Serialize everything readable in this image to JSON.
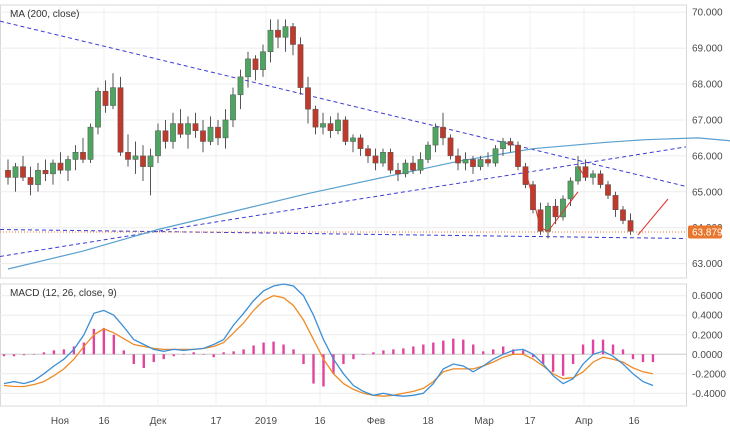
{
  "chart_data": [
    {
      "type": "candlestick",
      "indicator_label": "MA (200, close)",
      "x_tick_labels": [
        "Ноя",
        "16",
        "Дек",
        "17",
        "2019",
        "16",
        "Фев",
        "18",
        "Мар",
        "17",
        "Апр",
        "16"
      ],
      "y_tick_labels": [
        "70.000",
        "69.000",
        "68.000",
        "67.000",
        "66.000",
        "65.000",
        "64.000",
        "63.000"
      ],
      "ylim": [
        62.6,
        70.2
      ],
      "last_price": "63.879",
      "grid": true,
      "colors": {
        "up": "#4ea562",
        "down": "#c0392b",
        "ma": "#5aa0cf",
        "trend": "#3b3bd4",
        "price_line": "#e8762d"
      },
      "ohlc": [
        [
          65.6,
          65.9,
          65.2,
          65.4
        ],
        [
          65.4,
          65.8,
          65.0,
          65.7
        ],
        [
          65.7,
          66.0,
          65.3,
          65.4
        ],
        [
          65.4,
          65.7,
          64.9,
          65.2
        ],
        [
          65.2,
          65.8,
          65.0,
          65.6
        ],
        [
          65.6,
          65.9,
          65.3,
          65.5
        ],
        [
          65.5,
          65.9,
          65.2,
          65.8
        ],
        [
          65.8,
          66.1,
          65.5,
          65.6
        ],
        [
          65.6,
          66.0,
          65.3,
          65.9
        ],
        [
          65.9,
          66.3,
          65.6,
          66.1
        ],
        [
          66.1,
          66.5,
          65.8,
          65.9
        ],
        [
          65.9,
          66.9,
          65.8,
          66.8
        ],
        [
          66.8,
          67.9,
          66.6,
          67.8
        ],
        [
          67.8,
          68.1,
          67.2,
          67.4
        ],
        [
          67.4,
          68.3,
          67.3,
          67.9
        ],
        [
          67.9,
          68.2,
          66.0,
          66.1
        ],
        [
          66.1,
          66.6,
          65.7,
          65.9
        ],
        [
          65.9,
          66.4,
          65.5,
          66.0
        ],
        [
          66.0,
          66.3,
          65.3,
          65.7
        ],
        [
          65.7,
          66.2,
          64.9,
          66.0
        ],
        [
          66.0,
          66.9,
          65.8,
          66.7
        ],
        [
          66.7,
          67.0,
          66.2,
          66.4
        ],
        [
          66.4,
          67.2,
          66.2,
          66.9
        ],
        [
          66.9,
          67.3,
          66.5,
          66.6
        ],
        [
          66.6,
          67.1,
          66.2,
          66.9
        ],
        [
          66.9,
          67.2,
          66.5,
          66.7
        ],
        [
          66.7,
          67.0,
          66.1,
          66.4
        ],
        [
          66.4,
          67.1,
          66.3,
          66.8
        ],
        [
          66.8,
          67.0,
          66.3,
          66.5
        ],
        [
          66.5,
          67.3,
          66.2,
          67.0
        ],
        [
          67.0,
          67.9,
          66.8,
          67.7
        ],
        [
          67.7,
          68.4,
          67.3,
          68.2
        ],
        [
          68.2,
          68.9,
          67.9,
          68.7
        ],
        [
          68.7,
          68.8,
          68.1,
          68.4
        ],
        [
          68.4,
          69.1,
          68.2,
          68.9
        ],
        [
          68.9,
          69.8,
          68.6,
          69.5
        ],
        [
          69.5,
          69.8,
          69.0,
          69.3
        ],
        [
          69.3,
          69.8,
          68.9,
          69.6
        ],
        [
          69.6,
          69.7,
          68.8,
          69.1
        ],
        [
          69.1,
          69.3,
          67.7,
          67.9
        ],
        [
          67.9,
          68.2,
          66.9,
          67.3
        ],
        [
          67.3,
          67.4,
          66.6,
          66.8
        ],
        [
          66.8,
          67.2,
          66.6,
          66.9
        ],
        [
          66.9,
          67.1,
          66.5,
          66.7
        ],
        [
          66.7,
          67.2,
          66.6,
          67.0
        ],
        [
          67.0,
          67.1,
          66.3,
          66.4
        ],
        [
          66.4,
          66.6,
          66.1,
          66.5
        ],
        [
          66.5,
          66.6,
          66.0,
          66.2
        ],
        [
          66.2,
          66.3,
          65.8,
          66.0
        ],
        [
          66.0,
          66.2,
          65.6,
          65.8
        ],
        [
          65.8,
          66.2,
          65.7,
          66.1
        ],
        [
          66.1,
          66.2,
          65.5,
          65.6
        ],
        [
          65.6,
          65.8,
          65.3,
          65.5
        ],
        [
          65.5,
          65.9,
          65.4,
          65.8
        ],
        [
          65.8,
          66.0,
          65.5,
          65.6
        ],
        [
          65.6,
          66.1,
          65.5,
          65.9
        ],
        [
          65.9,
          66.4,
          65.8,
          66.3
        ],
        [
          66.3,
          66.9,
          66.1,
          66.8
        ],
        [
          66.8,
          67.2,
          66.3,
          66.5
        ],
        [
          66.5,
          66.6,
          65.9,
          66.0
        ],
        [
          66.0,
          66.2,
          65.6,
          65.8
        ],
        [
          65.8,
          66.1,
          65.6,
          65.9
        ],
        [
          65.9,
          66.0,
          65.5,
          65.7
        ],
        [
          65.7,
          66.0,
          65.6,
          65.9
        ],
        [
          65.9,
          66.1,
          65.7,
          65.8
        ],
        [
          65.8,
          66.3,
          65.7,
          66.2
        ],
        [
          66.2,
          66.5,
          66.0,
          66.4
        ],
        [
          66.4,
          66.5,
          66.1,
          66.3
        ],
        [
          66.3,
          66.4,
          65.6,
          65.7
        ],
        [
          65.7,
          65.8,
          65.1,
          65.2
        ],
        [
          65.2,
          65.3,
          64.4,
          64.5
        ],
        [
          64.5,
          64.7,
          63.8,
          63.9
        ],
        [
          63.9,
          64.7,
          63.7,
          64.6
        ],
        [
          64.6,
          64.8,
          64.1,
          64.3
        ],
        [
          64.3,
          64.9,
          64.2,
          64.8
        ],
        [
          64.8,
          65.4,
          64.6,
          65.3
        ],
        [
          65.3,
          66.0,
          65.2,
          65.7
        ],
        [
          65.7,
          65.9,
          65.3,
          65.4
        ],
        [
          65.4,
          65.6,
          65.2,
          65.5
        ],
        [
          65.5,
          65.6,
          65.1,
          65.2
        ],
        [
          65.2,
          65.3,
          64.8,
          64.9
        ],
        [
          64.9,
          65.0,
          64.3,
          64.5
        ],
        [
          64.5,
          64.6,
          64.1,
          64.2
        ],
        [
          64.2,
          64.4,
          63.8,
          63.9
        ]
      ],
      "ma200": [
        [
          0,
          62.85
        ],
        [
          10,
          63.35
        ],
        [
          20,
          63.95
        ],
        [
          30,
          64.45
        ],
        [
          40,
          64.95
        ],
        [
          50,
          65.4
        ],
        [
          60,
          65.85
        ],
        [
          70,
          66.2
        ],
        [
          80,
          66.38
        ],
        [
          85,
          66.45
        ],
        [
          92,
          66.5
        ],
        [
          100,
          66.35
        ]
      ]
    },
    {
      "type": "macd",
      "indicator_label": "MACD (12, 26, close, 9)",
      "y_tick_labels": [
        "0.6000",
        "0.4000",
        "0.2000",
        "0.0000",
        "-0.2000",
        "-0.4000"
      ],
      "ylim": [
        -0.53,
        0.72
      ],
      "macd": [
        -0.3,
        -0.28,
        -0.3,
        -0.27,
        -0.2,
        -0.12,
        -0.05,
        0.05,
        0.2,
        0.42,
        0.45,
        0.4,
        0.28,
        0.15,
        0.1,
        0.05,
        0.03,
        0.05,
        0.04,
        0.05,
        0.06,
        0.1,
        0.15,
        0.3,
        0.42,
        0.55,
        0.65,
        0.7,
        0.72,
        0.7,
        0.6,
        0.4,
        0.15,
        -0.05,
        -0.2,
        -0.32,
        -0.38,
        -0.42,
        -0.4,
        -0.42,
        -0.43,
        -0.42,
        -0.4,
        -0.3,
        -0.15,
        -0.1,
        -0.12,
        -0.18,
        -0.12,
        -0.05,
        0.0,
        0.04,
        0.05,
        0.0,
        -0.1,
        -0.22,
        -0.3,
        -0.25,
        -0.1,
        0.0,
        0.03,
        -0.02,
        -0.1,
        -0.2,
        -0.28,
        -0.32
      ],
      "signal": [
        -0.32,
        -0.33,
        -0.33,
        -0.31,
        -0.28,
        -0.22,
        -0.15,
        -0.05,
        0.08,
        0.2,
        0.26,
        0.22,
        0.16,
        0.1,
        0.08,
        0.06,
        0.05,
        0.05,
        0.05,
        0.05,
        0.06,
        0.08,
        0.12,
        0.22,
        0.32,
        0.45,
        0.55,
        0.6,
        0.58,
        0.5,
        0.35,
        0.15,
        -0.05,
        -0.2,
        -0.3,
        -0.36,
        -0.4,
        -0.42,
        -0.43,
        -0.42,
        -0.4,
        -0.38,
        -0.35,
        -0.28,
        -0.18,
        -0.15,
        -0.15,
        -0.15,
        -0.12,
        -0.08,
        -0.03,
        0.0,
        0.0,
        -0.05,
        -0.12,
        -0.2,
        -0.25,
        -0.24,
        -0.18,
        -0.08,
        -0.03,
        -0.05,
        -0.08,
        -0.14,
        -0.18,
        -0.2
      ],
      "histogram": [
        -0.02,
        -0.02,
        -0.01,
        0.0,
        0.02,
        0.04,
        0.05,
        0.08,
        0.12,
        0.26,
        0.27,
        0.2,
        0.04,
        -0.1,
        -0.14,
        -0.08,
        -0.05,
        -0.02,
        0.0,
        0.02,
        0.0,
        -0.03,
        0.02,
        0.03,
        0.05,
        0.09,
        0.12,
        0.13,
        0.1,
        0.05,
        -0.1,
        -0.3,
        -0.33,
        -0.2,
        -0.1,
        -0.05,
        0.0,
        0.02,
        0.04,
        0.05,
        0.06,
        0.08,
        0.1,
        0.12,
        0.14,
        0.16,
        0.15,
        0.1,
        0.03,
        0.05,
        0.08,
        0.05,
        0.04,
        -0.03,
        -0.1,
        -0.18,
        -0.22,
        -0.1,
        0.1,
        0.15,
        0.15,
        0.1,
        0.05,
        -0.05,
        -0.08,
        -0.08
      ],
      "colors": {
        "macd": "#3d8fd6",
        "signal": "#f08a24",
        "histogram": "#e0449e"
      }
    }
  ]
}
